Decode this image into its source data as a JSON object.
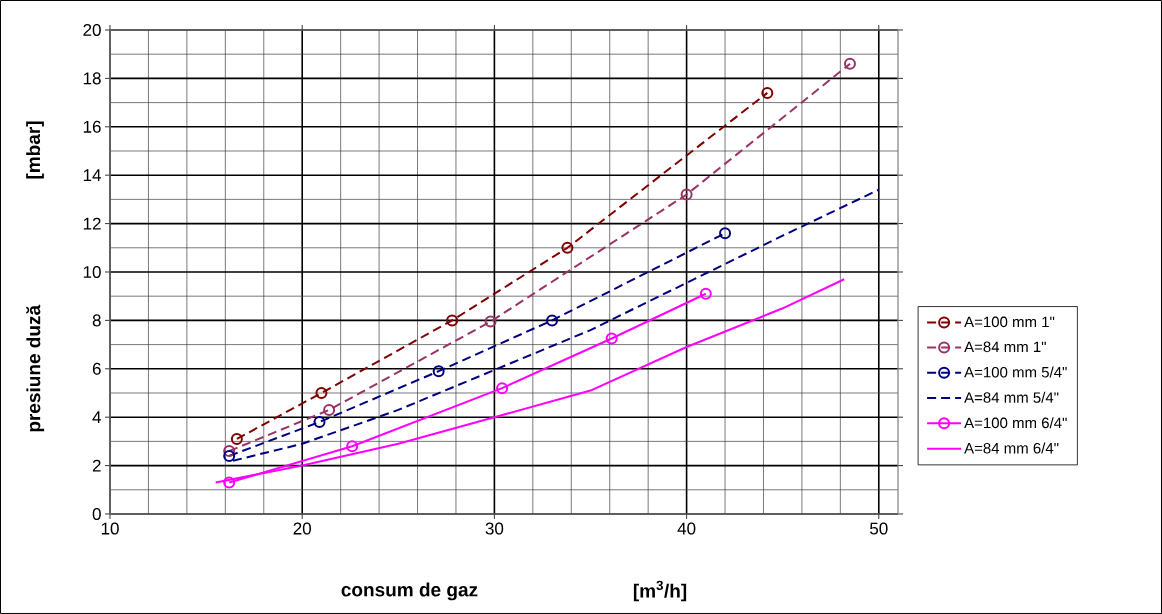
{
  "chart_data": {
    "type": "line",
    "xlabel": "consum de gaz",
    "ylabel": "presiune duză",
    "annotations": [
      "[mbar]",
      "[m$^{3}$/h]"
    ],
    "xlim": [
      10,
      51
    ],
    "ylim": [
      0,
      20
    ],
    "xticks": [
      10,
      20,
      30,
      40,
      50
    ],
    "yticks": [
      0,
      2,
      4,
      6,
      8,
      10,
      12,
      14,
      16,
      18,
      20
    ],
    "grid": true,
    "legend": "right",
    "series": [
      {
        "name": "A=100 mm  1\"",
        "color": "#800000",
        "line_style": "dashed",
        "marker": "circle",
        "x": [
          16.6,
          21,
          27.8,
          33.8,
          44.2
        ],
        "values": [
          3.1,
          5,
          8,
          11,
          17.4
        ]
      },
      {
        "name": "A=84 mm  1\"",
        "color": "#993366",
        "line_style": "dashed",
        "marker": "circle",
        "x": [
          16.2,
          21.4,
          29.8,
          40,
          48.5
        ],
        "values": [
          2.6,
          4.3,
          7.95,
          13.2,
          18.6
        ]
      },
      {
        "name": "A=100 mm  5/4\"",
        "color": "#000080",
        "line_style": "dashed",
        "marker": "circle",
        "x": [
          16.2,
          20.9,
          27.1,
          33,
          42
        ],
        "values": [
          2.4,
          3.8,
          5.9,
          8,
          11.6
        ]
      },
      {
        "name": "A=84 mm  5/4\"",
        "color": "#000080",
        "line_style": "dashed",
        "marker": "none",
        "x": [
          16.4,
          20,
          25,
          30,
          35,
          40,
          45,
          50
        ],
        "values": [
          2.2,
          2.9,
          4.3,
          5.95,
          7.6,
          9.55,
          11.5,
          13.4
        ]
      },
      {
        "name": "A=100 mm  6/4\"",
        "color": "#ff00ff",
        "line_style": "solid",
        "marker": "circle",
        "x": [
          16.2,
          22.6,
          30.4,
          36.1,
          41
        ],
        "values": [
          1.3,
          2.8,
          5.2,
          7.25,
          9.1
        ]
      },
      {
        "name": "A=84 mm  6/4\"",
        "color": "#ff00ff",
        "line_style": "solid",
        "marker": "none",
        "x": [
          15.5,
          20,
          25,
          30,
          35,
          40,
          45,
          48.2
        ],
        "values": [
          1.3,
          2.0,
          2.9,
          4.0,
          5.1,
          6.9,
          8.5,
          9.7
        ]
      }
    ]
  }
}
